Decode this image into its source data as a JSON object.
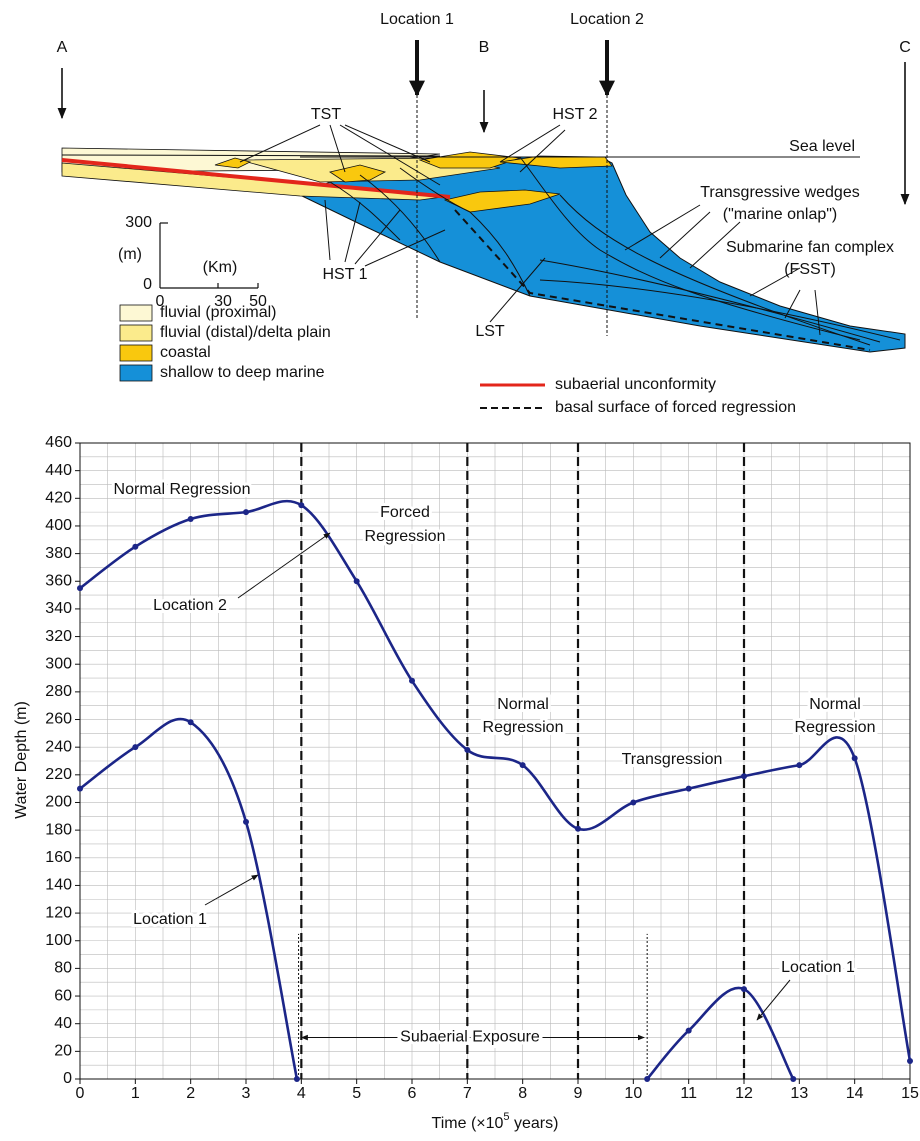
{
  "diagram": {
    "arrows": [
      "A",
      "B",
      "C"
    ],
    "locations": [
      "Location 1",
      "Location 2"
    ],
    "labels": {
      "tst": "TST",
      "hst2": "HST 2",
      "sea": "Sea level",
      "tw1": "Transgressive wedges",
      "tw2": "(\"marine onlap\")",
      "sf1": "Submarine fan complex",
      "sf2": "(FSST)",
      "hst1": "HST 1",
      "lst": "LST"
    },
    "scale": {
      "v_top": "300",
      "v_unit": "(m)",
      "v_zero": "0",
      "h_unit": "(Km)",
      "h_zero": "0",
      "h_mid": "30",
      "h_end": "50"
    },
    "legend": [
      {
        "label": "fluvial (proximal)",
        "color": "#fdf8d4"
      },
      {
        "label": "fluvial (distal)/delta plain",
        "color": "#fbeb8c"
      },
      {
        "label": "coastal",
        "color": "#f9c80e"
      },
      {
        "label": "shallow to deep marine",
        "color": "#1590d8"
      }
    ],
    "line_legend": [
      {
        "label": "subaerial unconformity",
        "color": "#e3261b",
        "style": "solid"
      },
      {
        "label": "basal surface of forced regression",
        "color": "#111111",
        "style": "dashed"
      }
    ]
  },
  "chart_data": {
    "type": "line",
    "y_label": "Water Depth (m)",
    "x_label": {
      "text": "Time (×10",
      "sup": "5",
      "after": " years)"
    },
    "xlim": [
      0,
      15
    ],
    "ylim": [
      0,
      460
    ],
    "xticks": [
      0,
      1,
      2,
      3,
      4,
      5,
      6,
      7,
      8,
      9,
      10,
      11,
      12,
      13,
      14,
      15
    ],
    "yticks": [
      0,
      20,
      40,
      60,
      80,
      100,
      120,
      140,
      160,
      180,
      200,
      220,
      240,
      260,
      280,
      300,
      320,
      340,
      360,
      380,
      400,
      420,
      440,
      460
    ],
    "minor_grid": {
      "x": 0.5,
      "y": 10
    },
    "grid": true,
    "series": [
      {
        "name": "Location 2",
        "color": "#1c2688",
        "x": [
          0,
          1,
          2,
          3,
          4,
          5,
          6,
          7,
          8,
          9,
          10,
          11,
          12,
          13,
          14,
          15
        ],
        "values": [
          355,
          385,
          405,
          410,
          415,
          360,
          288,
          238,
          227,
          181,
          200,
          210,
          219,
          227,
          232,
          13
        ]
      },
      {
        "name": "Location 1",
        "color": "#1c2688",
        "x": [
          0,
          1,
          2,
          3,
          3.92
        ],
        "values": [
          210,
          240,
          258,
          186,
          0
        ]
      },
      {
        "name": "Location 1",
        "color": "#1c2688",
        "x": [
          10.25,
          11,
          12,
          12.89
        ],
        "values": [
          0,
          35,
          65,
          0
        ]
      }
    ],
    "phase_lines": [
      4,
      7,
      9,
      12
    ],
    "exposure_markers": [
      3.95,
      10.25
    ],
    "annotations": {
      "normal1": "Normal Regression",
      "forced": [
        "Forced",
        "Regression"
      ],
      "normal2": [
        "Normal",
        "Regression"
      ],
      "transgression": "Transgression",
      "normal3": [
        "Normal",
        "Regression"
      ],
      "exposure": "Subaerial Exposure"
    }
  }
}
